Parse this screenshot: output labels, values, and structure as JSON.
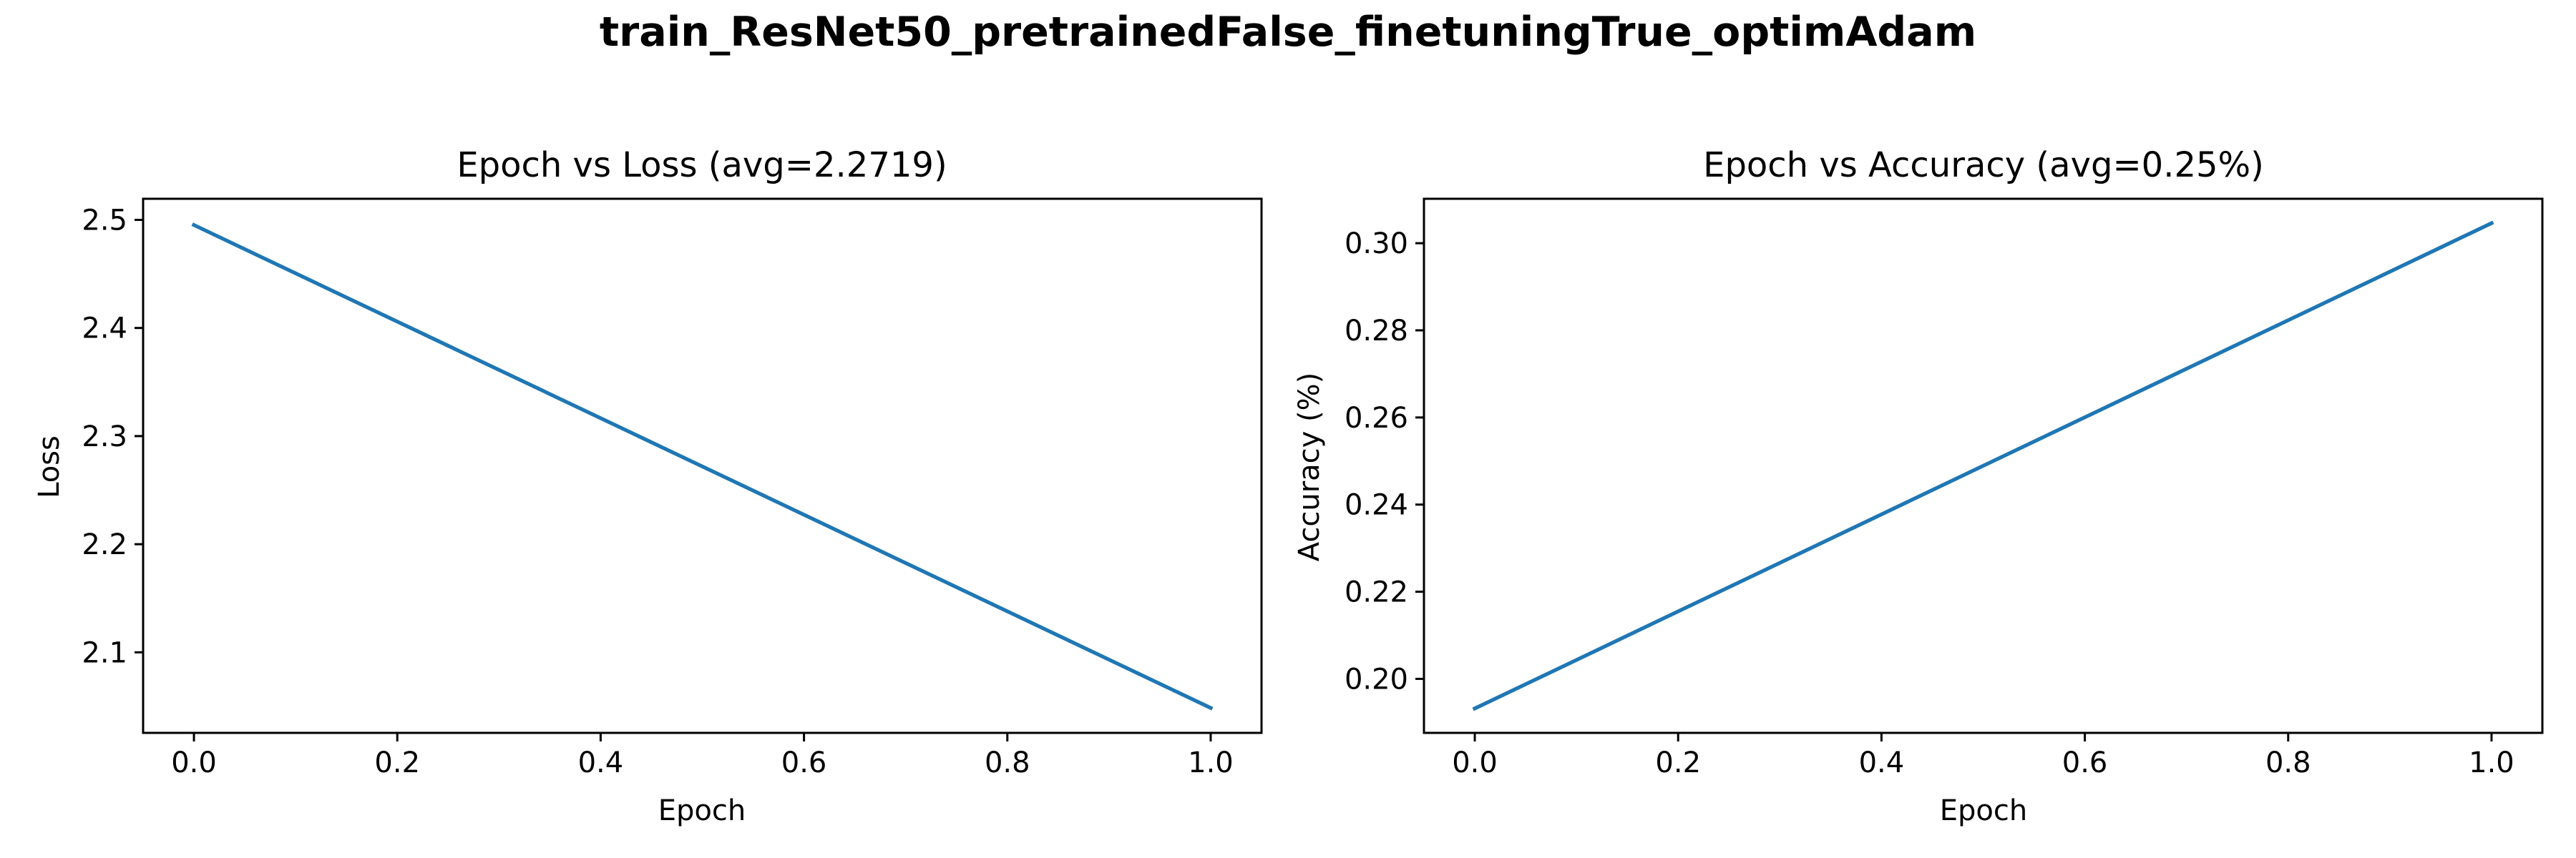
{
  "figure": {
    "title": "train_ResNet50_pretrainedFalse_finetuningTrue_optimAdam"
  },
  "colors": {
    "series": "#1f77b4",
    "axes": "#000000",
    "background": "#ffffff"
  },
  "chart_data": [
    {
      "type": "line",
      "title": "Epoch vs Loss (avg=2.2719)",
      "xlabel": "Epoch",
      "ylabel": "Loss",
      "xlim": [
        -0.05,
        1.05
      ],
      "ylim": [
        2.0255,
        2.5195
      ],
      "xticks": [
        0.0,
        0.2,
        0.4,
        0.6,
        0.8,
        1.0
      ],
      "xtick_labels": [
        "0.0",
        "0.2",
        "0.4",
        "0.6",
        "0.8",
        "1.0"
      ],
      "yticks": [
        2.1,
        2.2,
        2.3,
        2.4,
        2.5
      ],
      "ytick_labels": [
        "2.1",
        "2.2",
        "2.3",
        "2.4",
        "2.5"
      ],
      "grid": false,
      "series": [
        {
          "x": [
            0,
            1
          ],
          "y": [
            2.4952,
            2.0486
          ]
        }
      ]
    },
    {
      "type": "line",
      "title": "Epoch vs Accuracy (avg=0.25%)",
      "xlabel": "Epoch",
      "ylabel": "Accuracy (%)",
      "xlim": [
        -0.05,
        1.05
      ],
      "ylim": [
        0.1876,
        0.3102
      ],
      "xticks": [
        0.0,
        0.2,
        0.4,
        0.6,
        0.8,
        1.0
      ],
      "xtick_labels": [
        "0.0",
        "0.2",
        "0.4",
        "0.6",
        "0.8",
        "1.0"
      ],
      "yticks": [
        0.2,
        0.22,
        0.24,
        0.26,
        0.28,
        0.3
      ],
      "ytick_labels": [
        "0.20",
        "0.22",
        "0.24",
        "0.26",
        "0.28",
        "0.30"
      ],
      "grid": false,
      "series": [
        {
          "x": [
            0,
            1
          ],
          "y": [
            0.1932,
            0.3046
          ]
        }
      ]
    }
  ]
}
